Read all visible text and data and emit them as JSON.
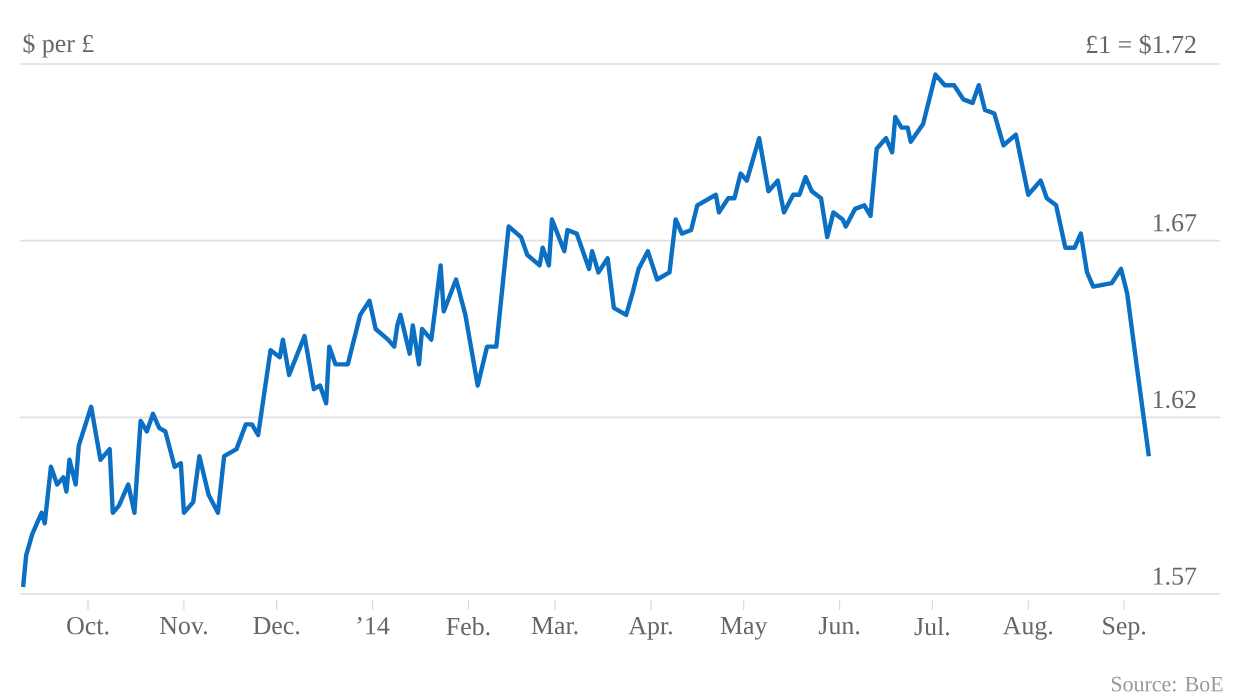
{
  "chart_data": {
    "type": "line",
    "ylabel": "$ per £",
    "annotations": [
      "Source: BoE"
    ],
    "x": [
      "2013-09-10",
      "2013-09-11",
      "2013-09-13",
      "2013-09-16",
      "2013-09-17",
      "2013-09-19",
      "2013-09-21",
      "2013-09-23",
      "2013-09-24",
      "2013-09-25",
      "2013-09-27",
      "2013-09-28",
      "2013-10-02",
      "2013-10-05",
      "2013-10-08",
      "2013-10-09",
      "2013-10-11",
      "2013-10-14",
      "2013-10-16",
      "2013-10-18",
      "2013-10-20",
      "2013-10-22",
      "2013-10-24",
      "2013-10-26",
      "2013-10-29",
      "2013-10-31",
      "2013-11-01",
      "2013-11-04",
      "2013-11-06",
      "2013-11-09",
      "2013-11-12",
      "2013-11-14",
      "2013-11-18",
      "2013-11-21",
      "2013-11-23",
      "2013-11-25",
      "2013-11-29",
      "2013-12-02",
      "2013-12-03",
      "2013-12-05",
      "2013-12-10",
      "2013-12-13",
      "2013-12-15",
      "2013-12-17",
      "2013-12-18",
      "2013-12-20",
      "2013-12-24",
      "2013-12-28",
      "2013-12-31",
      "2014-01-02",
      "2014-01-06",
      "2014-01-08",
      "2014-01-09",
      "2014-01-10",
      "2014-01-13",
      "2014-01-14",
      "2014-01-16",
      "2014-01-17",
      "2014-01-20",
      "2014-01-23",
      "2014-01-24",
      "2014-01-28",
      "2014-01-31",
      "2014-02-04",
      "2014-02-07",
      "2014-02-10",
      "2014-02-14",
      "2014-02-18",
      "2014-02-20",
      "2014-02-24",
      "2014-02-25",
      "2014-02-27",
      "2014-02-28",
      "2014-03-04",
      "2014-03-05",
      "2014-03-08",
      "2014-03-12",
      "2014-03-13",
      "2014-03-15",
      "2014-03-18",
      "2014-03-20",
      "2014-03-24",
      "2014-03-26",
      "2014-03-28",
      "2014-03-31",
      "2014-04-03",
      "2014-04-07",
      "2014-04-09",
      "2014-04-11",
      "2014-04-14",
      "2014-04-16",
      "2014-04-22",
      "2014-04-23",
      "2014-04-26",
      "2014-04-28",
      "2014-04-30",
      "2014-05-02",
      "2014-05-06",
      "2014-05-09",
      "2014-05-12",
      "2014-05-14",
      "2014-05-17",
      "2014-05-19",
      "2014-05-21",
      "2014-05-23",
      "2014-05-26",
      "2014-05-28",
      "2014-05-30",
      "2014-06-02",
      "2014-06-03",
      "2014-06-06",
      "2014-06-09",
      "2014-06-11",
      "2014-06-13",
      "2014-06-16",
      "2014-06-18",
      "2014-06-19",
      "2014-06-21",
      "2014-06-23",
      "2014-06-24",
      "2014-06-28",
      "2014-07-02",
      "2014-07-05",
      "2014-07-08",
      "2014-07-11",
      "2014-07-14",
      "2014-07-16",
      "2014-07-18",
      "2014-07-21",
      "2014-07-24",
      "2014-07-28",
      "2014-08-01",
      "2014-08-05",
      "2014-08-07",
      "2014-08-10",
      "2014-08-13",
      "2014-08-16",
      "2014-08-18",
      "2014-08-20",
      "2014-08-22",
      "2014-08-28",
      "2014-08-31",
      "2014-09-02",
      "2014-09-05",
      "2014-09-09"
    ],
    "series": [
      {
        "color": "#0b6fc4",
        "values": [
          1.572,
          1.581,
          1.587,
          1.593,
          1.59,
          1.606,
          1.601,
          1.603,
          1.599,
          1.608,
          1.601,
          1.612,
          1.623,
          1.608,
          1.611,
          1.593,
          1.595,
          1.601,
          1.593,
          1.619,
          1.616,
          1.621,
          1.617,
          1.616,
          1.606,
          1.607,
          1.593,
          1.596,
          1.609,
          1.598,
          1.593,
          1.609,
          1.611,
          1.618,
          1.618,
          1.615,
          1.639,
          1.637,
          1.642,
          1.632,
          1.643,
          1.628,
          1.629,
          1.624,
          1.64,
          1.635,
          1.635,
          1.649,
          1.653,
          1.645,
          1.642,
          1.64,
          1.646,
          1.649,
          1.638,
          1.646,
          1.635,
          1.645,
          1.642,
          1.663,
          1.65,
          1.659,
          1.649,
          1.629,
          1.64,
          1.64,
          1.674,
          1.671,
          1.666,
          1.663,
          1.668,
          1.663,
          1.676,
          1.667,
          1.673,
          1.672,
          1.662,
          1.667,
          1.661,
          1.665,
          1.651,
          1.649,
          1.655,
          1.662,
          1.667,
          1.659,
          1.661,
          1.676,
          1.672,
          1.673,
          1.68,
          1.683,
          1.678,
          1.682,
          1.682,
          1.689,
          1.687,
          1.699,
          1.684,
          1.687,
          1.678,
          1.683,
          1.683,
          1.688,
          1.684,
          1.682,
          1.671,
          1.678,
          1.676,
          1.674,
          1.679,
          1.68,
          1.677,
          1.696,
          1.699,
          1.695,
          1.705,
          1.702,
          1.702,
          1.698,
          1.703,
          1.717,
          1.714,
          1.714,
          1.71,
          1.709,
          1.714,
          1.707,
          1.706,
          1.697,
          1.7,
          1.683,
          1.687,
          1.682,
          1.68,
          1.668,
          1.668,
          1.672,
          1.661,
          1.657,
          1.658,
          1.662,
          1.655,
          1.635,
          1.609
        ]
      }
    ],
    "xlim": [
      "2013-09-09",
      "2014-10-02"
    ],
    "xticks": [
      {
        "value": "2013-10-01",
        "label": "Oct."
      },
      {
        "value": "2013-11-01",
        "label": "Nov."
      },
      {
        "value": "2013-12-01",
        "label": "Dec."
      },
      {
        "value": "2014-01-01",
        "label": "’14"
      },
      {
        "value": "2014-02-01",
        "label": "Feb."
      },
      {
        "value": "2014-03-01",
        "label": "Mar."
      },
      {
        "value": "2014-04-01",
        "label": "Apr."
      },
      {
        "value": "2014-05-01",
        "label": "May"
      },
      {
        "value": "2014-06-01",
        "label": "Jun."
      },
      {
        "value": "2014-07-01",
        "label": "Jul."
      },
      {
        "value": "2014-08-01",
        "label": "Aug."
      },
      {
        "value": "2014-09-01",
        "label": "Sep."
      }
    ],
    "ylim": [
      1.57,
      1.72
    ],
    "yticks": [
      1.57,
      1.62,
      1.67,
      {
        "value": 1.72,
        "label": "£1 = $1.72"
      }
    ],
    "grid": "y",
    "marker": "none",
    "line_style": "solid"
  }
}
